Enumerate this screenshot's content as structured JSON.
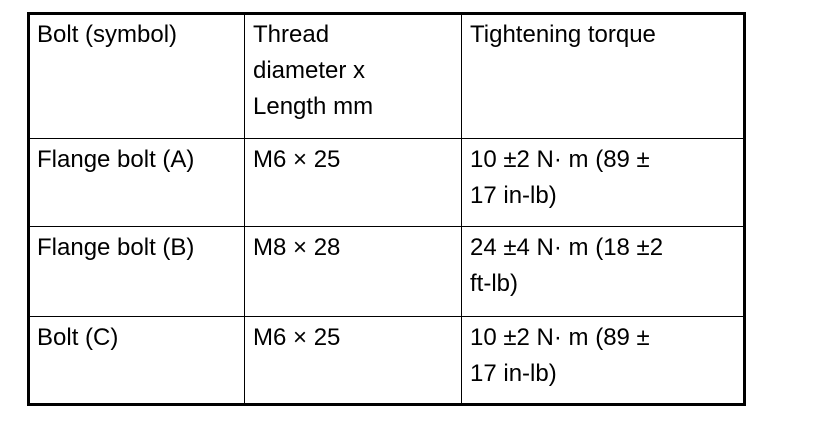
{
  "table": {
    "headers": [
      "Bolt (symbol)",
      "Thread\ndiameter x\nLength mm",
      "Tightening torque"
    ],
    "rows": [
      [
        "Flange bolt (A)",
        "M6 × 25",
        "10 ±2 N·  m (89 ±\n17 in-lb)"
      ],
      [
        "Flange bolt (B)",
        "M8 × 28",
        "24 ±4 N·  m (18 ±2\nft-lb)"
      ],
      [
        "Bolt (C)",
        "M6 × 25",
        "10 ±2 N·  m (89 ±\n17 in-lb)"
      ]
    ]
  }
}
